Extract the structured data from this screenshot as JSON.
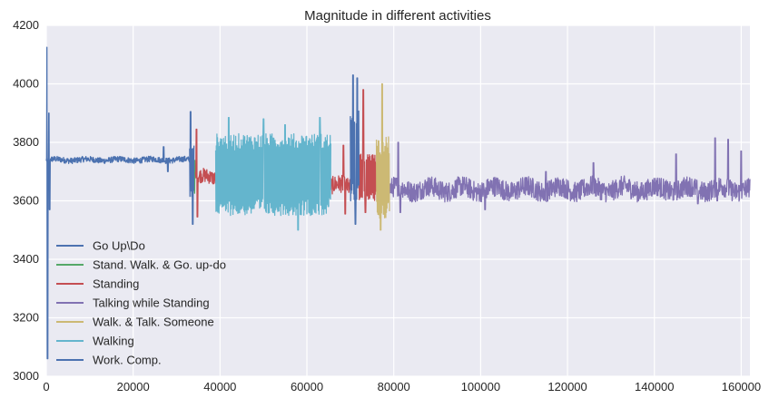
{
  "chart_data": {
    "type": "line",
    "title": "Magnitude in different activities",
    "xlabel": "",
    "ylabel": "",
    "xlim": [
      0,
      162000
    ],
    "ylim": [
      3000,
      4200
    ],
    "x_ticks": [
      0,
      20000,
      40000,
      60000,
      80000,
      100000,
      120000,
      140000,
      160000
    ],
    "x_tick_labels": [
      "0",
      "20000",
      "40000",
      "60000",
      "80000",
      "100000",
      "120000",
      "140000",
      "160000"
    ],
    "y_ticks": [
      3000,
      3200,
      3400,
      3600,
      3800,
      4000,
      4200
    ],
    "y_tick_labels": [
      "3000",
      "3200",
      "3400",
      "3600",
      "3800",
      "4000",
      "4200"
    ],
    "grid": true,
    "legend_position": "lower-left",
    "series": [
      {
        "name": "Go Up\\Do",
        "color": "#4c72b0",
        "segments": [
          {
            "x_start": 33000,
            "x_end": 34000,
            "center": 3700,
            "amp": 90,
            "spikes": [
              [
                33200,
                3905
              ],
              [
                33700,
                3520
              ]
            ]
          },
          {
            "x_start": 70000,
            "x_end": 72000,
            "center": 3750,
            "amp": 160,
            "spikes": [
              [
                70600,
                4030
              ],
              [
                71200,
                3520
              ],
              [
                71600,
                4020
              ]
            ]
          }
        ]
      },
      {
        "name": "Stand. Walk. & Go. up-do",
        "color": "#55a868",
        "segments": [
          {
            "x_start": 34000,
            "x_end": 34300,
            "center": 3680,
            "amp": 60,
            "spikes": []
          }
        ]
      },
      {
        "name": "Standing",
        "color": "#c44e52",
        "segments": [
          {
            "x_start": 34300,
            "x_end": 39000,
            "center": 3680,
            "amp": 25,
            "spikes": [
              [
                34600,
                3845
              ],
              [
                34800,
                3545
              ]
            ]
          },
          {
            "x_start": 65500,
            "x_end": 70000,
            "center": 3650,
            "amp": 30,
            "spikes": [
              [
                68400,
                3790
              ],
              [
                68800,
                3555
              ]
            ]
          },
          {
            "x_start": 72000,
            "x_end": 76000,
            "center": 3680,
            "amp": 80,
            "spikes": [
              [
                73000,
                3980
              ],
              [
                73500,
                3560
              ]
            ]
          }
        ]
      },
      {
        "name": "Talking while Standing",
        "color": "#8172b2",
        "segments": [
          {
            "x_start": 79000,
            "x_end": 162000,
            "center": 3640,
            "amp": 35,
            "spikes": [
              [
                81000,
                3800
              ],
              [
                81500,
                3560
              ],
              [
                101000,
                3570
              ],
              [
                115000,
                3700
              ],
              [
                126000,
                3730
              ],
              [
                145000,
                3760
              ],
              [
                150000,
                3590
              ],
              [
                154000,
                3815
              ],
              [
                154500,
                3600
              ],
              [
                157000,
                3810
              ],
              [
                160000,
                3770
              ]
            ]
          }
        ]
      },
      {
        "name": "Walk. & Talk. Someone",
        "color": "#ccb974",
        "segments": [
          {
            "x_start": 76000,
            "x_end": 79000,
            "center": 3680,
            "amp": 140,
            "spikes": [
              [
                77300,
                4000
              ],
              [
                77000,
                3500
              ]
            ]
          }
        ]
      },
      {
        "name": "Walking",
        "color": "#64b5cd",
        "segments": [
          {
            "x_start": 39000,
            "x_end": 65500,
            "center": 3690,
            "amp": 140,
            "spikes": [
              [
                42000,
                3885
              ],
              [
                50000,
                3880
              ],
              [
                55000,
                3860
              ],
              [
                58000,
                3500
              ],
              [
                63000,
                3885
              ]
            ]
          }
        ]
      },
      {
        "name": "Work. Comp.",
        "color": "#4c72b0",
        "segments": [
          {
            "x_start": 0,
            "x_end": 33000,
            "center": 3740,
            "amp": 10,
            "spikes": [
              [
                200,
                4125
              ],
              [
                300,
                3060
              ],
              [
                600,
                3900
              ],
              [
                800,
                3570
              ],
              [
                27000,
                3785
              ],
              [
                28000,
                3700
              ]
            ]
          }
        ]
      }
    ]
  }
}
